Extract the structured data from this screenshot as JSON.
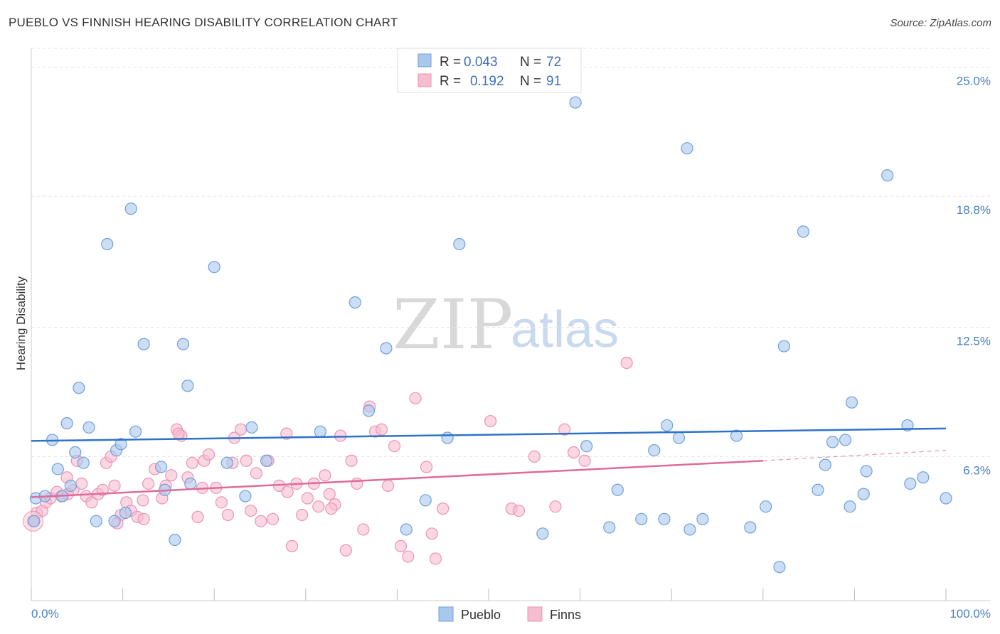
{
  "header": {
    "title": "PUEBLO VS FINNISH HEARING DISABILITY CORRELATION CHART",
    "source": "Source: ZipAtlas.com"
  },
  "colors": {
    "pueblo_fill": "#aac8ee",
    "pueblo_stroke": "#6f9fd8",
    "pueblo_line": "#2f72c9",
    "finns_fill": "#f6bdd0",
    "finns_stroke": "#e994b4",
    "finns_line": "#e06a98",
    "grid": "#e3e3e3",
    "tick_label": "#4a7fc1"
  },
  "legend": {
    "rows": [
      {
        "r_label": "R =",
        "r_value": "0.043",
        "n_label": "N =",
        "n_value": "72"
      },
      {
        "r_label": "R =",
        "r_value": "0.192",
        "n_label": "N =",
        "n_value": "91"
      }
    ]
  },
  "watermark": {
    "zip": "ZIP",
    "atlas": "atlas"
  },
  "chart_data": {
    "type": "scatter",
    "title": "PUEBLO VS FINNISH HEARING DISABILITY CORRELATION CHART",
    "xlabel": "",
    "ylabel": "Hearing Disability",
    "xlim": [
      0,
      100
    ],
    "ylim": [
      0,
      25.9
    ],
    "y_ticks": [
      {
        "value": 6.3,
        "label": "6.3%"
      },
      {
        "value": 12.5,
        "label": "12.5%"
      },
      {
        "value": 18.8,
        "label": "18.8%"
      },
      {
        "value": 25.0,
        "label": "25.0%"
      }
    ],
    "x_tick_labels": {
      "left": "0.0%",
      "right": "100.0%"
    },
    "x_minor_ticks": [
      0,
      10,
      20,
      30,
      40,
      50,
      60,
      70,
      80,
      90,
      100
    ],
    "grid": true,
    "series": [
      {
        "name": "Pueblo",
        "r": 0.043,
        "n": 72,
        "trend": {
          "x0": 0,
          "y0": 7.05,
          "x1": 100,
          "y1": 7.65,
          "dashed_from": null
        },
        "points": [
          [
            0.3,
            3.2
          ],
          [
            0.5,
            4.3
          ],
          [
            1.5,
            4.4
          ],
          [
            2.3,
            7.1
          ],
          [
            2.9,
            5.7
          ],
          [
            3.4,
            4.4
          ],
          [
            3.9,
            7.9
          ],
          [
            4.3,
            4.9
          ],
          [
            4.8,
            6.5
          ],
          [
            5.2,
            9.6
          ],
          [
            5.7,
            6.0
          ],
          [
            6.3,
            7.7
          ],
          [
            7.1,
            3.2
          ],
          [
            8.3,
            16.5
          ],
          [
            9.1,
            3.2
          ],
          [
            9.3,
            6.6
          ],
          [
            9.8,
            6.9
          ],
          [
            10.3,
            3.6
          ],
          [
            10.9,
            18.2
          ],
          [
            11.4,
            7.5
          ],
          [
            12.3,
            11.7
          ],
          [
            14.2,
            5.8
          ],
          [
            14.6,
            4.7
          ],
          [
            15.7,
            2.3
          ],
          [
            16.6,
            11.7
          ],
          [
            17.1,
            9.7
          ],
          [
            17.4,
            5.0
          ],
          [
            20.0,
            15.4
          ],
          [
            21.4,
            6.0
          ],
          [
            23.4,
            4.4
          ],
          [
            24.1,
            7.7
          ],
          [
            25.7,
            6.1
          ],
          [
            31.6,
            7.5
          ],
          [
            35.4,
            13.7
          ],
          [
            36.9,
            8.5
          ],
          [
            38.8,
            11.5
          ],
          [
            41.0,
            2.8
          ],
          [
            43.1,
            4.2
          ],
          [
            45.5,
            7.2
          ],
          [
            46.8,
            16.5
          ],
          [
            59.5,
            23.3
          ],
          [
            60.7,
            6.8
          ],
          [
            63.2,
            2.9
          ],
          [
            64.1,
            4.7
          ],
          [
            66.7,
            3.3
          ],
          [
            68.1,
            6.6
          ],
          [
            69.2,
            3.3
          ],
          [
            69.5,
            7.8
          ],
          [
            70.8,
            7.2
          ],
          [
            71.7,
            21.1
          ],
          [
            72.0,
            2.8
          ],
          [
            77.1,
            7.3
          ],
          [
            78.6,
            2.9
          ],
          [
            80.3,
            3.9
          ],
          [
            81.8,
            1.0
          ],
          [
            82.3,
            11.6
          ],
          [
            84.4,
            17.1
          ],
          [
            86.0,
            4.7
          ],
          [
            86.8,
            5.9
          ],
          [
            87.6,
            7.0
          ],
          [
            89.0,
            7.1
          ],
          [
            89.5,
            3.9
          ],
          [
            89.7,
            8.9
          ],
          [
            91.0,
            4.5
          ],
          [
            91.3,
            5.6
          ],
          [
            93.6,
            19.8
          ],
          [
            95.8,
            7.8
          ],
          [
            96.1,
            5.0
          ],
          [
            97.5,
            5.3
          ],
          [
            100.0,
            4.3
          ],
          [
            73.4,
            3.3
          ],
          [
            55.9,
            2.6
          ]
        ]
      },
      {
        "name": "Finns",
        "r": 0.192,
        "n": 91,
        "trend": {
          "x0": 0,
          "y0": 4.35,
          "x1": 80,
          "y1": 6.1,
          "dashed_from": 80,
          "dashed_to": 100,
          "dashed_y1": 6.6
        },
        "points": [
          [
            0.2,
            3.2
          ],
          [
            0.6,
            3.6
          ],
          [
            1.2,
            3.7
          ],
          [
            1.6,
            4.1
          ],
          [
            2.1,
            4.3
          ],
          [
            2.8,
            4.6
          ],
          [
            3.3,
            4.4
          ],
          [
            3.9,
            5.3
          ],
          [
            4.6,
            4.7
          ],
          [
            5.0,
            6.1
          ],
          [
            5.5,
            5.0
          ],
          [
            6.0,
            4.4
          ],
          [
            6.6,
            4.1
          ],
          [
            7.3,
            4.5
          ],
          [
            7.8,
            4.7
          ],
          [
            8.2,
            6.0
          ],
          [
            8.7,
            6.3
          ],
          [
            9.1,
            4.9
          ],
          [
            9.8,
            3.5
          ],
          [
            10.4,
            4.1
          ],
          [
            10.9,
            3.7
          ],
          [
            11.6,
            3.4
          ],
          [
            12.2,
            4.2
          ],
          [
            12.8,
            5.0
          ],
          [
            13.5,
            5.7
          ],
          [
            14.3,
            4.3
          ],
          [
            14.7,
            4.9
          ],
          [
            15.3,
            5.4
          ],
          [
            15.9,
            7.6
          ],
          [
            16.4,
            7.3
          ],
          [
            17.1,
            5.3
          ],
          [
            17.6,
            6.0
          ],
          [
            18.2,
            3.4
          ],
          [
            18.9,
            6.1
          ],
          [
            19.4,
            6.4
          ],
          [
            20.2,
            4.8
          ],
          [
            20.8,
            4.1
          ],
          [
            21.5,
            3.5
          ],
          [
            22.2,
            7.2
          ],
          [
            22.9,
            7.6
          ],
          [
            23.5,
            6.1
          ],
          [
            24.0,
            3.7
          ],
          [
            24.6,
            5.5
          ],
          [
            25.1,
            3.2
          ],
          [
            25.9,
            6.1
          ],
          [
            26.4,
            3.3
          ],
          [
            27.1,
            4.9
          ],
          [
            27.9,
            7.4
          ],
          [
            28.5,
            2.0
          ],
          [
            29.0,
            5.0
          ],
          [
            29.6,
            3.5
          ],
          [
            30.2,
            4.3
          ],
          [
            30.9,
            5.0
          ],
          [
            31.4,
            3.9
          ],
          [
            32.1,
            5.4
          ],
          [
            32.6,
            4.5
          ],
          [
            33.2,
            4.0
          ],
          [
            33.8,
            7.3
          ],
          [
            34.4,
            1.8
          ],
          [
            35.0,
            6.1
          ],
          [
            35.6,
            5.0
          ],
          [
            36.3,
            2.8
          ],
          [
            37.0,
            8.7
          ],
          [
            37.6,
            7.5
          ],
          [
            38.3,
            7.6
          ],
          [
            39.0,
            4.9
          ],
          [
            39.7,
            6.8
          ],
          [
            40.4,
            2.0
          ],
          [
            41.2,
            1.5
          ],
          [
            42.0,
            9.1
          ],
          [
            43.2,
            5.8
          ],
          [
            43.8,
            2.6
          ],
          [
            44.2,
            1.4
          ],
          [
            45.0,
            3.8
          ],
          [
            50.2,
            8.0
          ],
          [
            52.5,
            3.8
          ],
          [
            53.3,
            3.7
          ],
          [
            55.0,
            6.3
          ],
          [
            57.3,
            3.9
          ],
          [
            58.3,
            7.6
          ],
          [
            59.3,
            6.5
          ],
          [
            60.5,
            6.1
          ],
          [
            65.1,
            10.8
          ],
          [
            28.0,
            4.6
          ],
          [
            32.8,
            3.8
          ],
          [
            18.7,
            4.8
          ],
          [
            12.3,
            3.3
          ],
          [
            22.0,
            6.0
          ],
          [
            16.1,
            7.4
          ],
          [
            9.4,
            3.1
          ],
          [
            4.0,
            4.5
          ]
        ]
      }
    ]
  },
  "bottom_legend": {
    "items": [
      {
        "label": "Pueblo"
      },
      {
        "label": "Finns"
      }
    ]
  }
}
